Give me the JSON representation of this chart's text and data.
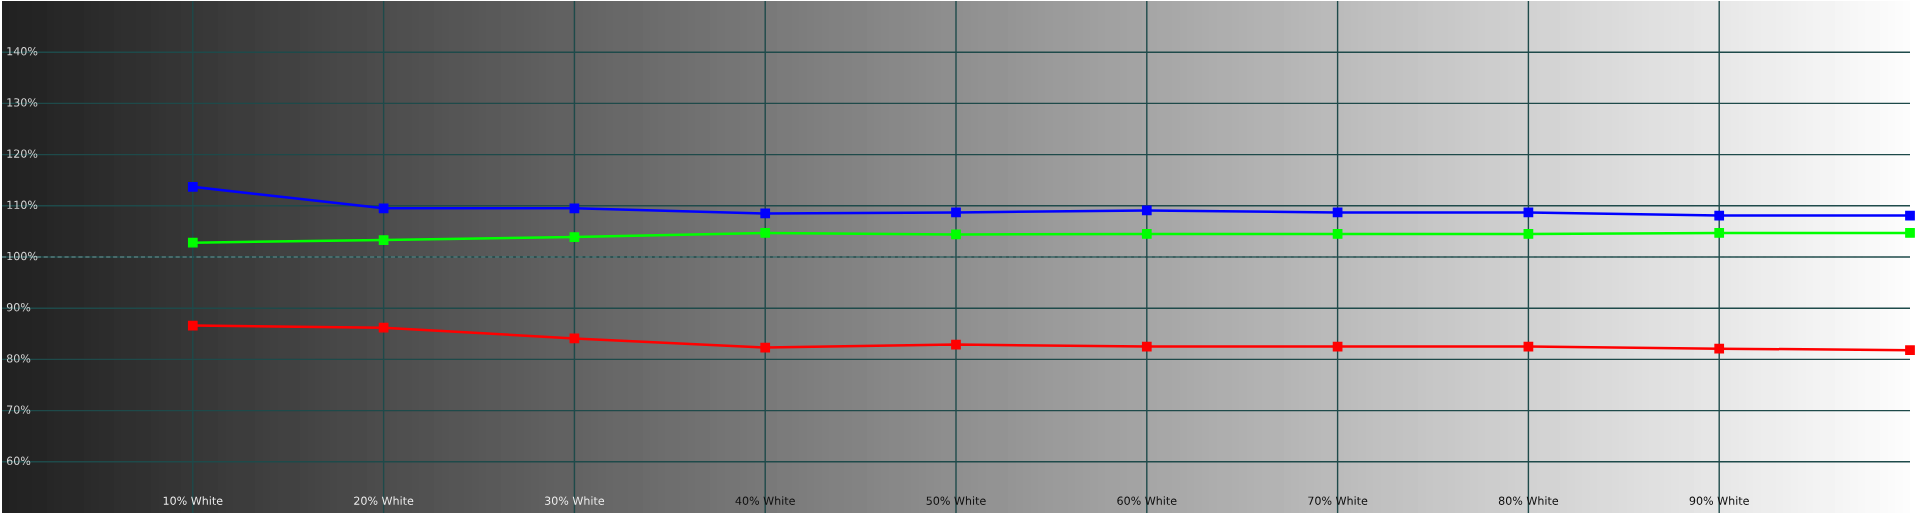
{
  "chart_data": {
    "type": "line",
    "x": [
      10,
      20,
      30,
      40,
      50,
      60,
      70,
      80,
      90,
      100
    ],
    "xlim": [
      0,
      100
    ],
    "xticks": [
      {
        "value": 10,
        "label": "10% White"
      },
      {
        "value": 20,
        "label": "20% White"
      },
      {
        "value": 30,
        "label": "30% White"
      },
      {
        "value": 40,
        "label": "40% White"
      },
      {
        "value": 50,
        "label": "50% White"
      },
      {
        "value": 60,
        "label": "60% White"
      },
      {
        "value": 70,
        "label": "70% White"
      },
      {
        "value": 80,
        "label": "80% White"
      },
      {
        "value": 90,
        "label": "90% White"
      }
    ],
    "ylim": [
      50,
      150
    ],
    "yticks": [
      {
        "value": 60,
        "label": "60%"
      },
      {
        "value": 70,
        "label": "70%"
      },
      {
        "value": 80,
        "label": "80%"
      },
      {
        "value": 90,
        "label": "90%"
      },
      {
        "value": 100,
        "label": "100%"
      },
      {
        "value": 110,
        "label": "110%"
      },
      {
        "value": 120,
        "label": "120%"
      },
      {
        "value": 130,
        "label": "130%"
      },
      {
        "value": 140,
        "label": "140%"
      }
    ],
    "series": [
      {
        "color": "#0000ff",
        "values": [
          113.7,
          109.5,
          109.5,
          108.5,
          108.7,
          109.1,
          108.7,
          108.7,
          108.1,
          108.1
        ]
      },
      {
        "color": "#00ff00",
        "values": [
          102.8,
          103.3,
          103.9,
          104.7,
          104.4,
          104.5,
          104.5,
          104.5,
          104.7,
          104.7
        ]
      },
      {
        "color": "#ff0000",
        "values": [
          86.6,
          86.2,
          84.1,
          82.3,
          82.9,
          82.5,
          82.5,
          82.5,
          82.1,
          81.8
        ]
      }
    ],
    "ref_lines": [
      {
        "axis": "y",
        "value": 100,
        "color": "#ffffff",
        "line_style": "dashed"
      }
    ],
    "grid": true,
    "marker": "square",
    "line_style": "solid"
  }
}
